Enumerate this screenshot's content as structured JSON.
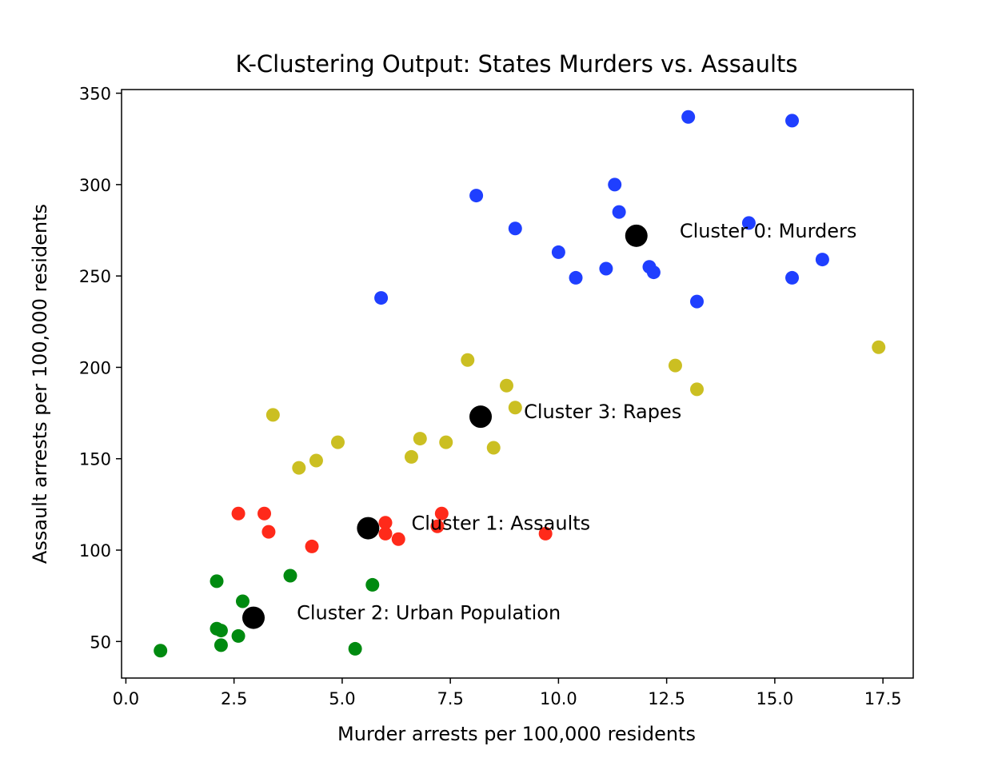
{
  "chart_data": {
    "type": "scatter",
    "title": "K-Clustering Output: States Murders vs. Assaults",
    "xlabel": "Murder arrests per 100,000 residents",
    "ylabel": "Assault arrests per 100,000 residents",
    "xlim": [
      -0.1,
      18.2
    ],
    "ylim": [
      30,
      352
    ],
    "xticks": [
      0.0,
      2.5,
      5.0,
      7.5,
      10.0,
      12.5,
      15.0,
      17.5
    ],
    "xtick_labels": [
      "0.0",
      "2.5",
      "5.0",
      "7.5",
      "10.0",
      "12.5",
      "15.0",
      "17.5"
    ],
    "yticks": [
      50,
      100,
      150,
      200,
      250,
      300,
      350
    ],
    "ytick_labels": [
      "50",
      "100",
      "150",
      "200",
      "250",
      "300",
      "350"
    ],
    "grid": false,
    "series": [
      {
        "color": "#1f3fff",
        "points": [
          {
            "x": 13.0,
            "y": 337
          },
          {
            "x": 15.4,
            "y": 335
          },
          {
            "x": 8.1,
            "y": 294
          },
          {
            "x": 11.3,
            "y": 300
          },
          {
            "x": 11.4,
            "y": 285
          },
          {
            "x": 14.4,
            "y": 279
          },
          {
            "x": 9.0,
            "y": 276
          },
          {
            "x": 10.0,
            "y": 263
          },
          {
            "x": 16.1,
            "y": 259
          },
          {
            "x": 11.1,
            "y": 254
          },
          {
            "x": 12.1,
            "y": 255
          },
          {
            "x": 12.2,
            "y": 252
          },
          {
            "x": 10.4,
            "y": 249
          },
          {
            "x": 15.4,
            "y": 249
          },
          {
            "x": 5.9,
            "y": 238
          },
          {
            "x": 13.2,
            "y": 236
          }
        ]
      },
      {
        "color": "#ff2a1a",
        "points": [
          {
            "x": 2.6,
            "y": 120
          },
          {
            "x": 3.2,
            "y": 120
          },
          {
            "x": 3.3,
            "y": 110
          },
          {
            "x": 4.3,
            "y": 102
          },
          {
            "x": 6.0,
            "y": 115
          },
          {
            "x": 6.0,
            "y": 109
          },
          {
            "x": 6.3,
            "y": 106
          },
          {
            "x": 7.2,
            "y": 113
          },
          {
            "x": 7.3,
            "y": 120
          },
          {
            "x": 9.7,
            "y": 109
          }
        ]
      },
      {
        "color": "#008a10",
        "points": [
          {
            "x": 0.8,
            "y": 45
          },
          {
            "x": 2.1,
            "y": 83
          },
          {
            "x": 2.1,
            "y": 57
          },
          {
            "x": 2.2,
            "y": 56
          },
          {
            "x": 2.2,
            "y": 48
          },
          {
            "x": 2.6,
            "y": 53
          },
          {
            "x": 2.7,
            "y": 72
          },
          {
            "x": 3.8,
            "y": 86
          },
          {
            "x": 5.3,
            "y": 46
          },
          {
            "x": 5.7,
            "y": 81
          }
        ]
      },
      {
        "color": "#cbbf22",
        "points": [
          {
            "x": 3.4,
            "y": 174
          },
          {
            "x": 4.0,
            "y": 145
          },
          {
            "x": 4.4,
            "y": 149
          },
          {
            "x": 4.9,
            "y": 159
          },
          {
            "x": 6.6,
            "y": 151
          },
          {
            "x": 6.8,
            "y": 161
          },
          {
            "x": 7.4,
            "y": 159
          },
          {
            "x": 7.9,
            "y": 204
          },
          {
            "x": 8.5,
            "y": 156
          },
          {
            "x": 8.8,
            "y": 190
          },
          {
            "x": 9.0,
            "y": 178
          },
          {
            "x": 12.7,
            "y": 201
          },
          {
            "x": 13.2,
            "y": 188
          },
          {
            "x": 17.4,
            "y": 211
          }
        ]
      }
    ],
    "centroids": {
      "color": "#000000",
      "points": [
        {
          "x": 11.8,
          "y": 272
        },
        {
          "x": 5.6,
          "y": 112
        },
        {
          "x": 2.95,
          "y": 63
        },
        {
          "x": 8.2,
          "y": 173
        }
      ]
    },
    "annotations": [
      {
        "text": "Cluster 0: Murders",
        "x": 12.8,
        "y": 272
      },
      {
        "text": "Cluster 1: Assaults",
        "x": 6.6,
        "y": 112
      },
      {
        "text": "Cluster 2: Urban Population",
        "x": 3.95,
        "y": 63
      },
      {
        "text": "Cluster 3: Rapes",
        "x": 9.2,
        "y": 173
      }
    ]
  }
}
